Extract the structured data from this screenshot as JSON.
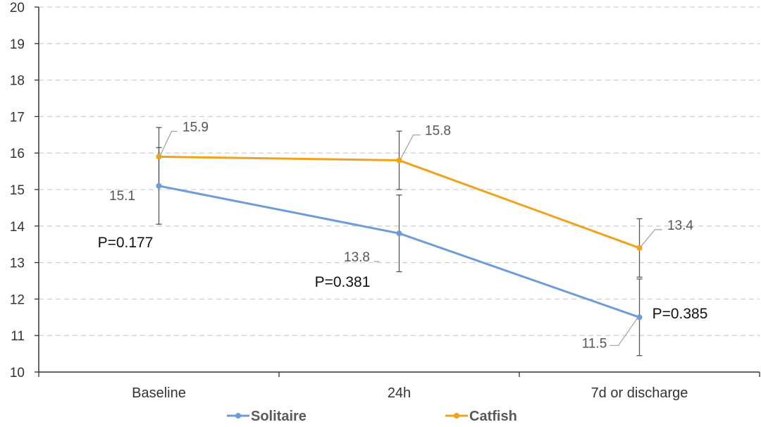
{
  "colors": {
    "Solitaire": "#6f9bd6",
    "Catfish": "#f0a21e",
    "axis": "#333333",
    "grid": "#d0d0d0",
    "errorbar": "#555555",
    "leader": "#a0a0a0"
  },
  "chart_data": {
    "type": "line",
    "title": "",
    "xlabel": "",
    "ylabel": "",
    "categories": [
      "Baseline",
      "24h",
      "7d or discharge"
    ],
    "ylim": [
      10,
      20
    ],
    "yticks": [
      "10",
      "11",
      "12",
      "13",
      "14",
      "15",
      "16",
      "17",
      "18",
      "19",
      "20"
    ],
    "grid": true,
    "legend_position": "bottom",
    "series": [
      {
        "name": "Solitaire",
        "values": [
          15.1,
          13.8,
          11.5
        ],
        "error_low": [
          14.05,
          12.75,
          10.45
        ],
        "error_high": [
          16.15,
          14.85,
          12.55
        ],
        "labels": [
          "15.1",
          "13.8",
          "11.5"
        ]
      },
      {
        "name": "Catfish",
        "values": [
          15.9,
          15.8,
          13.4
        ],
        "error_low": [
          15.1,
          15.0,
          12.6
        ],
        "error_high": [
          16.7,
          16.6,
          14.2
        ],
        "labels": [
          "15.9",
          "15.8",
          "13.4"
        ]
      }
    ],
    "annotations": [
      "P=0.177",
      "P=0.381",
      "P=0.385"
    ]
  }
}
